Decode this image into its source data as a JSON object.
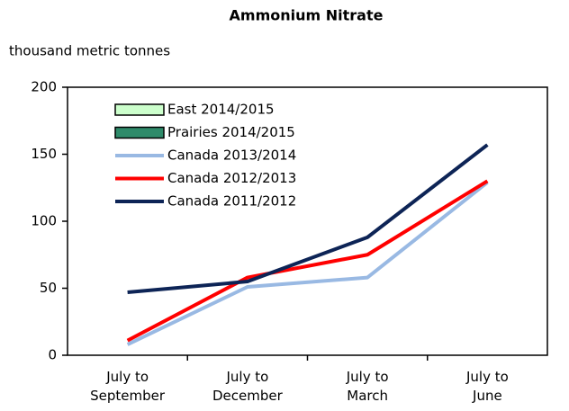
{
  "chart_data": {
    "type": "line",
    "title": "Ammonium Nitrate",
    "y_label": "thousand metric tonnes",
    "categories": [
      [
        "July to",
        "September"
      ],
      [
        "July to",
        "December"
      ],
      [
        "July to",
        "March"
      ],
      [
        "July to",
        "June"
      ]
    ],
    "ylim": [
      0,
      200
    ],
    "yticks": [
      0,
      50,
      100,
      150,
      200
    ],
    "grid": false,
    "legend": "upper left",
    "series": [
      {
        "name": "East 2014/2015",
        "mark": "bar",
        "color": "#ccffcc",
        "values": [
          null,
          null,
          null,
          null
        ]
      },
      {
        "name": "Prairies 2014/2015",
        "mark": "bar",
        "color": "#2e8b6a",
        "values": [
          null,
          null,
          null,
          null
        ]
      },
      {
        "name": "Canada 2013/2014",
        "mark": "line",
        "color": "#99b9e3",
        "values": [
          8,
          51,
          58,
          129
        ]
      },
      {
        "name": "Canada 2012/2013",
        "mark": "line",
        "color": "#ff0000",
        "values": [
          11,
          58,
          75,
          130
        ]
      },
      {
        "name": "Canada 2011/2012",
        "mark": "line",
        "color": "#0d2456",
        "values": [
          47,
          55,
          88,
          157
        ]
      }
    ]
  }
}
